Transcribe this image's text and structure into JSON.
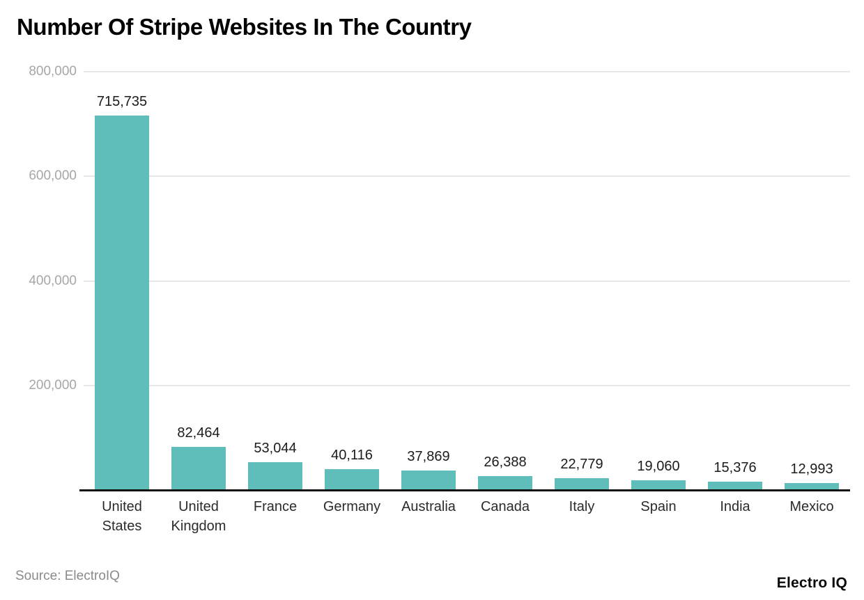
{
  "page": {
    "title": "Number Of Stripe Websites In The Country",
    "source_note": "Source: ElectroIQ",
    "brand": "Electro IQ"
  },
  "colors": {
    "bar": "#5fbeb9",
    "grid": "#e7e7e7",
    "axis": "#111111",
    "ytick_label": "#a6a6a6",
    "value_label": "#1b1b1b",
    "category_label": "#2b2b2b",
    "source": "#8a8a8a",
    "title": "#000000"
  },
  "chart_data": {
    "type": "bar",
    "title": "Number Of Stripe Websites In The Country",
    "categories": [
      "United States",
      "United Kingdom",
      "France",
      "Germany",
      "Australia",
      "Canada",
      "Italy",
      "Spain",
      "India",
      "Mexico"
    ],
    "values": [
      715735,
      82464,
      53044,
      40116,
      37869,
      26388,
      22779,
      19060,
      15376,
      12993
    ],
    "value_labels": [
      "715,735",
      "82,464",
      "53,044",
      "40,116",
      "37,869",
      "26,388",
      "22,779",
      "19,060",
      "15,376",
      "12,993"
    ],
    "xlabel": "",
    "ylabel": "",
    "ylim": [
      0,
      800000
    ],
    "yticks": [
      200000,
      400000,
      600000,
      800000
    ],
    "ytick_labels": [
      "200,000",
      "400,000",
      "600,000",
      "800,000"
    ],
    "grid": "horizontal-only",
    "legend": "none",
    "bar_color": "#5fbeb9"
  }
}
